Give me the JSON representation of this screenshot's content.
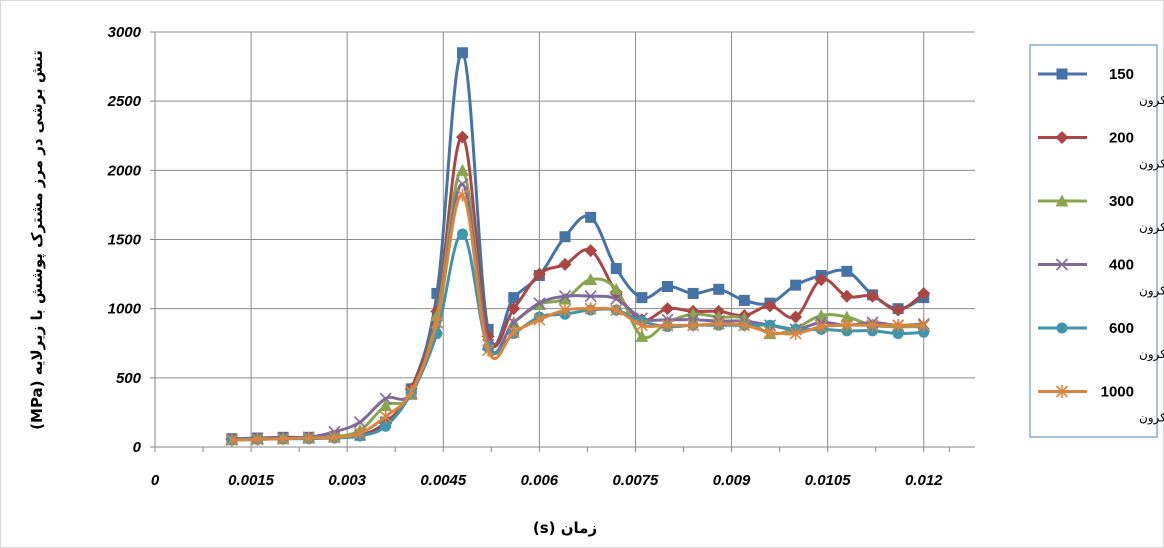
{
  "chart_data": {
    "type": "line",
    "xlabel": "زمان (s)",
    "ylabel": "تنش برشی در مرز مشترک پوشش با زیرلایه (MPa)",
    "xlim": [
      0,
      0.0128
    ],
    "ylim": [
      0,
      3000
    ],
    "x_ticks": [
      "0",
      "0.0015",
      "0.003",
      "0.0045",
      "0.006",
      "0.0075",
      "0.009",
      "0.0105",
      "0.012"
    ],
    "y_ticks": [
      "0",
      "500",
      "1000",
      "1500",
      "2000",
      "2500",
      "3000"
    ],
    "grid": true,
    "legend_position": "right",
    "series": [
      {
        "name": "150",
        "unit": "میکرون",
        "color": "#4572A7",
        "marker": "square",
        "points": [
          [
            0.0012,
            60
          ],
          [
            0.0016,
            65
          ],
          [
            0.002,
            70
          ],
          [
            0.0024,
            70
          ],
          [
            0.0028,
            75
          ],
          [
            0.0032,
            85
          ],
          [
            0.0036,
            180
          ],
          [
            0.004,
            420
          ],
          [
            0.0044,
            1110
          ],
          [
            0.0048,
            2850
          ],
          [
            0.0052,
            850
          ],
          [
            0.0056,
            1080
          ],
          [
            0.006,
            1240
          ],
          [
            0.0064,
            1520
          ],
          [
            0.0068,
            1660
          ],
          [
            0.0072,
            1290
          ],
          [
            0.0076,
            1080
          ],
          [
            0.008,
            1160
          ],
          [
            0.0084,
            1110
          ],
          [
            0.0088,
            1140
          ],
          [
            0.0092,
            1060
          ],
          [
            0.0096,
            1040
          ],
          [
            0.01,
            1170
          ],
          [
            0.0104,
            1240
          ],
          [
            0.0108,
            1270
          ],
          [
            0.0112,
            1100
          ],
          [
            0.0116,
            1000
          ],
          [
            0.012,
            1080
          ]
        ]
      },
      {
        "name": "200",
        "unit": "میکرون",
        "color": "#AA4643",
        "marker": "diamond",
        "points": [
          [
            0.0012,
            55
          ],
          [
            0.0016,
            60
          ],
          [
            0.002,
            65
          ],
          [
            0.0024,
            65
          ],
          [
            0.0028,
            70
          ],
          [
            0.0032,
            85
          ],
          [
            0.0036,
            170
          ],
          [
            0.004,
            420
          ],
          [
            0.0044,
            980
          ],
          [
            0.0048,
            2240
          ],
          [
            0.0052,
            800
          ],
          [
            0.0056,
            1000
          ],
          [
            0.006,
            1250
          ],
          [
            0.0064,
            1320
          ],
          [
            0.0068,
            1420
          ],
          [
            0.0072,
            1120
          ],
          [
            0.0076,
            920
          ],
          [
            0.008,
            1000
          ],
          [
            0.0084,
            980
          ],
          [
            0.0088,
            980
          ],
          [
            0.0092,
            950
          ],
          [
            0.0096,
            1020
          ],
          [
            0.01,
            940
          ],
          [
            0.0104,
            1210
          ],
          [
            0.0108,
            1090
          ],
          [
            0.0112,
            1090
          ],
          [
            0.0116,
            990
          ],
          [
            0.012,
            1110
          ]
        ]
      },
      {
        "name": "300",
        "unit": "میکرون",
        "color": "#89A54E",
        "marker": "triangle",
        "points": [
          [
            0.0012,
            55
          ],
          [
            0.0016,
            60
          ],
          [
            0.002,
            60
          ],
          [
            0.0024,
            65
          ],
          [
            0.0028,
            75
          ],
          [
            0.0032,
            120
          ],
          [
            0.0036,
            300
          ],
          [
            0.004,
            380
          ],
          [
            0.0044,
            950
          ],
          [
            0.0048,
            2000
          ],
          [
            0.0052,
            740
          ],
          [
            0.0056,
            900
          ],
          [
            0.006,
            1030
          ],
          [
            0.0064,
            1070
          ],
          [
            0.0068,
            1210
          ],
          [
            0.0072,
            1140
          ],
          [
            0.0076,
            800
          ],
          [
            0.008,
            900
          ],
          [
            0.0084,
            960
          ],
          [
            0.0088,
            940
          ],
          [
            0.0092,
            930
          ],
          [
            0.0096,
            820
          ],
          [
            0.01,
            860
          ],
          [
            0.0104,
            950
          ],
          [
            0.0108,
            940
          ],
          [
            0.0112,
            880
          ],
          [
            0.0116,
            870
          ],
          [
            0.012,
            870
          ]
        ]
      },
      {
        "name": "400",
        "unit": "میکرون",
        "color": "#80699B",
        "marker": "x",
        "points": [
          [
            0.0012,
            55
          ],
          [
            0.0016,
            60
          ],
          [
            0.002,
            60
          ],
          [
            0.0024,
            70
          ],
          [
            0.0028,
            110
          ],
          [
            0.0032,
            180
          ],
          [
            0.0036,
            350
          ],
          [
            0.004,
            390
          ],
          [
            0.0044,
            900
          ],
          [
            0.0048,
            1900
          ],
          [
            0.0052,
            740
          ],
          [
            0.0056,
            900
          ],
          [
            0.006,
            1040
          ],
          [
            0.0064,
            1090
          ],
          [
            0.0068,
            1090
          ],
          [
            0.0072,
            1070
          ],
          [
            0.0076,
            930
          ],
          [
            0.008,
            920
          ],
          [
            0.0084,
            920
          ],
          [
            0.0088,
            910
          ],
          [
            0.0092,
            910
          ],
          [
            0.0096,
            880
          ],
          [
            0.01,
            850
          ],
          [
            0.0104,
            900
          ],
          [
            0.0108,
            880
          ],
          [
            0.0112,
            900
          ],
          [
            0.0116,
            880
          ],
          [
            0.012,
            890
          ]
        ]
      },
      {
        "name": "600",
        "unit": "میکرون",
        "color": "#3D96AE",
        "marker": "circle",
        "points": [
          [
            0.0012,
            50
          ],
          [
            0.0016,
            55
          ],
          [
            0.002,
            60
          ],
          [
            0.0024,
            60
          ],
          [
            0.0028,
            65
          ],
          [
            0.0032,
            80
          ],
          [
            0.0036,
            150
          ],
          [
            0.004,
            390
          ],
          [
            0.0044,
            820
          ],
          [
            0.0048,
            1540
          ],
          [
            0.0052,
            720
          ],
          [
            0.0056,
            820
          ],
          [
            0.006,
            940
          ],
          [
            0.0064,
            960
          ],
          [
            0.0068,
            990
          ],
          [
            0.0072,
            990
          ],
          [
            0.0076,
            910
          ],
          [
            0.008,
            870
          ],
          [
            0.0084,
            880
          ],
          [
            0.0088,
            880
          ],
          [
            0.0092,
            880
          ],
          [
            0.0096,
            880
          ],
          [
            0.01,
            850
          ],
          [
            0.0104,
            850
          ],
          [
            0.0108,
            840
          ],
          [
            0.0112,
            840
          ],
          [
            0.0116,
            820
          ],
          [
            0.012,
            830
          ]
        ]
      },
      {
        "name": "1000",
        "unit": "میکرون",
        "color": "#DB843D",
        "marker": "star",
        "points": [
          [
            0.0012,
            50
          ],
          [
            0.0016,
            55
          ],
          [
            0.002,
            60
          ],
          [
            0.0024,
            65
          ],
          [
            0.0028,
            70
          ],
          [
            0.0032,
            100
          ],
          [
            0.0036,
            220
          ],
          [
            0.004,
            400
          ],
          [
            0.0044,
            900
          ],
          [
            0.0048,
            1820
          ],
          [
            0.0052,
            700
          ],
          [
            0.0056,
            830
          ],
          [
            0.006,
            920
          ],
          [
            0.0064,
            990
          ],
          [
            0.0068,
            1000
          ],
          [
            0.0072,
            990
          ],
          [
            0.0076,
            880
          ],
          [
            0.008,
            880
          ],
          [
            0.0084,
            880
          ],
          [
            0.0088,
            890
          ],
          [
            0.0092,
            880
          ],
          [
            0.0096,
            830
          ],
          [
            0.01,
            820
          ],
          [
            0.0104,
            870
          ],
          [
            0.0108,
            880
          ],
          [
            0.0112,
            880
          ],
          [
            0.0116,
            880
          ],
          [
            0.012,
            880
          ]
        ]
      }
    ]
  }
}
